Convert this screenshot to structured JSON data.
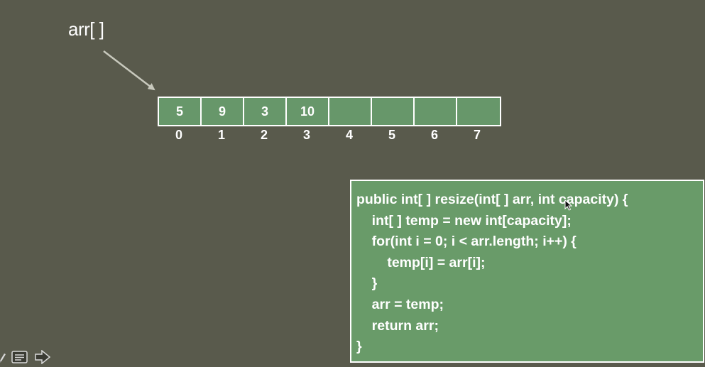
{
  "array_label": "arr[ ]",
  "array": {
    "cells": [
      "5",
      "9",
      "3",
      "10",
      "",
      "",
      "",
      ""
    ],
    "indices": [
      "0",
      "1",
      "2",
      "3",
      "4",
      "5",
      "6",
      "7"
    ]
  },
  "code": {
    "lines": [
      "public int[ ] resize(int[ ] arr, int capacity) {",
      "    int[ ] temp = new int[capacity];",
      "    for(int i = 0; i < arr.length; i++) {",
      "        temp[i] = arr[i];",
      "    }",
      "    arr = temp;",
      "    return arr;",
      "}"
    ]
  },
  "toolbar": {
    "icons": [
      "pencil-icon",
      "notes-icon",
      "next-arrow-icon"
    ]
  },
  "watermark": "",
  "colors": {
    "background": "#595a4c",
    "cell_fill": "#67976a",
    "code_fill": "#699b69",
    "border": "#ffffff"
  }
}
